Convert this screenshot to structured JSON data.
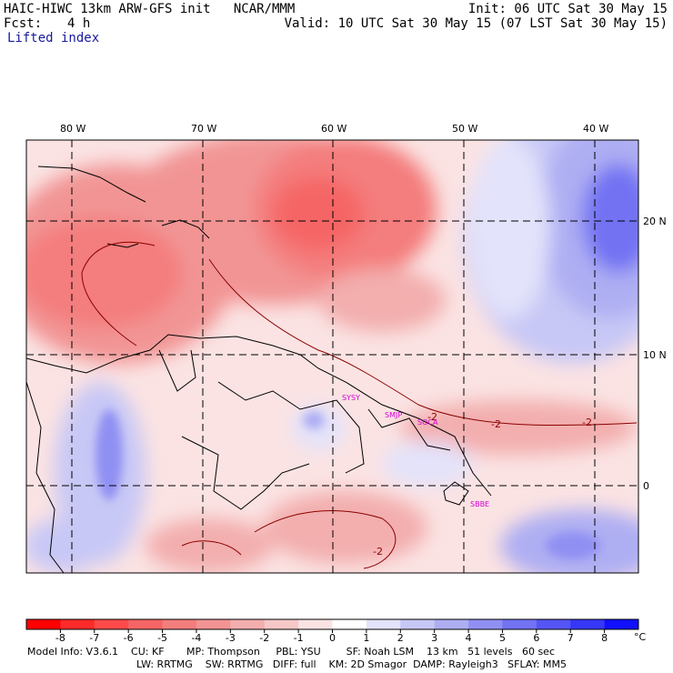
{
  "header": {
    "model_line": "HAIC-HIWC 13km ARW-GFS init   NCAR/MMM",
    "init_line": "Init: 06 UTC Sat 30 May 15",
    "fcst_label": "Fcst:",
    "fcst_value": "4 h",
    "valid_line": "Valid: 10 UTC Sat 30 May 15 (07 LST Sat 30 May 15)",
    "field_name": "Lifted index"
  },
  "map": {
    "lon_labels": [
      "80 W",
      "70 W",
      "60 W",
      "50 W",
      "40 W"
    ],
    "lat_labels": [
      "20 N",
      "10 N",
      "0"
    ],
    "stations": [
      "SYSY",
      "SMJP",
      "SOCA",
      "SBBE"
    ],
    "contour_labels": [
      "-2",
      "-2",
      "-2",
      "-2"
    ],
    "colors": {
      "border": "#000000",
      "gridline": "#000000",
      "contour": "#8b0000",
      "station": "#d400d4"
    }
  },
  "colorbar": {
    "tick_labels": [
      "-8",
      "-7",
      "-6",
      "-5",
      "-4",
      "-3",
      "-2",
      "-1",
      "0",
      "1",
      "2",
      "3",
      "4",
      "5",
      "6",
      "7",
      "8"
    ],
    "unit": "°C",
    "colors": [
      "#ff0000",
      "#ff2a2a",
      "#ff4a4a",
      "#f56565",
      "#f47d7d",
      "#f29494",
      "#f3aeae",
      "#f6c8c8",
      "#fbe3e3",
      "#ffffff",
      "#e3e3fb",
      "#c8c8f6",
      "#aeaef3",
      "#9090f3",
      "#7272f3",
      "#5555f5",
      "#3737f8",
      "#1010ff"
    ]
  },
  "footer": {
    "line1": "Model Info: V3.6.1    CU: KF       MP: Thompson     PBL: YSU        SF: Noah LSM    13 km   51 levels   60 sec",
    "line2": "LW: RRTMG    SW: RRTMG   DIFF: full    KM: 2D Smagor  DAMP: Rayleigh3   SFLAY: MM5"
  }
}
